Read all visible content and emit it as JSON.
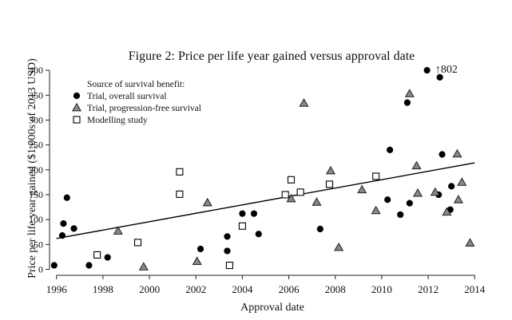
{
  "chart_data": {
    "type": "scatter",
    "title": "Figure 2: Price per life year gained versus approval date",
    "xlabel": "Approval date",
    "ylabel": "Price per life year gained ($1,000s of 2013 USD)",
    "xlim": [
      1995.7,
      2014.3
    ],
    "ylim": [
      -12,
      405
    ],
    "xticks": [
      "1996",
      "1998",
      "2000",
      "2002",
      "2004",
      "2006",
      "2008",
      "2010",
      "2012",
      "2014"
    ],
    "yticks": [
      "0",
      "50",
      "100",
      "150",
      "200",
      "250",
      "300",
      "350",
      "400"
    ],
    "grid": false,
    "legend": {
      "title": "Source of survival benefit:",
      "position": "top-left"
    },
    "annotation": {
      "text": "↑802",
      "x": 2012.3,
      "y": 405
    },
    "trendline": {
      "x": [
        1996,
        2014
      ],
      "y": [
        62,
        214
      ]
    },
    "series": [
      {
        "name": "Trial, overall survival",
        "marker": "filled-circle",
        "color": "#000000",
        "points": [
          [
            1995.9,
            8
          ],
          [
            1996.25,
            68
          ],
          [
            1996.3,
            92
          ],
          [
            1996.45,
            144
          ],
          [
            1996.75,
            82
          ],
          [
            1997.4,
            8
          ],
          [
            1998.2,
            24
          ],
          [
            2002.2,
            41
          ],
          [
            2003.35,
            37
          ],
          [
            2003.35,
            66
          ],
          [
            2004.0,
            112
          ],
          [
            2004.5,
            112
          ],
          [
            2004.7,
            71
          ],
          [
            2007.35,
            81
          ],
          [
            2010.25,
            140
          ],
          [
            2010.35,
            240
          ],
          [
            2010.8,
            110
          ],
          [
            2011.1,
            335
          ],
          [
            2011.2,
            133
          ],
          [
            2011.95,
            400
          ],
          [
            2012.45,
            150
          ],
          [
            2012.5,
            386
          ],
          [
            2012.6,
            231
          ],
          [
            2012.95,
            120
          ],
          [
            2013.0,
            167
          ]
        ]
      },
      {
        "name": "Trial, progression-free survival",
        "marker": "triangle",
        "color": "#888888",
        "points": [
          [
            1998.65,
            77
          ],
          [
            1999.75,
            5
          ],
          [
            2002.05,
            16
          ],
          [
            2002.5,
            134
          ],
          [
            2006.1,
            142
          ],
          [
            2006.65,
            334
          ],
          [
            2007.2,
            135
          ],
          [
            2007.8,
            198
          ],
          [
            2008.15,
            44
          ],
          [
            2009.15,
            160
          ],
          [
            2009.75,
            118
          ],
          [
            2011.2,
            353
          ],
          [
            2011.5,
            208
          ],
          [
            2011.55,
            153
          ],
          [
            2012.3,
            155
          ],
          [
            2012.8,
            115
          ],
          [
            2013.25,
            232
          ],
          [
            2013.3,
            140
          ],
          [
            2013.45,
            175
          ],
          [
            2013.8,
            53
          ]
        ]
      },
      {
        "name": "Modelling study",
        "marker": "hollow-square",
        "color": "#000000",
        "points": [
          [
            1997.75,
            29
          ],
          [
            1999.5,
            54
          ],
          [
            2001.3,
            196
          ],
          [
            2001.3,
            151
          ],
          [
            2003.45,
            8
          ],
          [
            2004.0,
            87
          ],
          [
            2005.85,
            150
          ],
          [
            2006.1,
            180
          ],
          [
            2006.5,
            155
          ],
          [
            2007.75,
            171
          ],
          [
            2009.75,
            187
          ]
        ]
      }
    ]
  }
}
